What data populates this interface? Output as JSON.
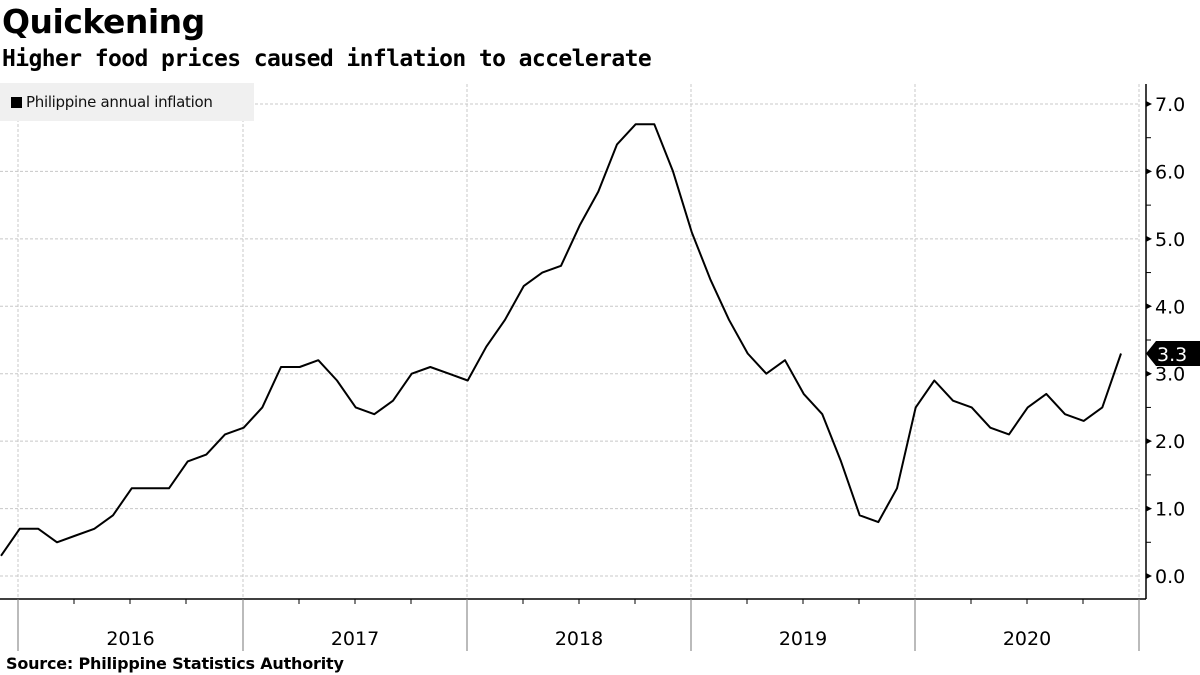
{
  "header": {
    "title": "Quickening",
    "subtitle": "Higher food prices caused inflation to accelerate"
  },
  "legend": {
    "items": [
      {
        "label": "Philippine annual inflation",
        "color": "#000000"
      }
    ]
  },
  "footer": {
    "source": "Source:  Philippine Statistics Authority"
  },
  "last_value_tag": "3.3",
  "chart_data": {
    "type": "line",
    "title": "Quickening",
    "subtitle": "Higher food prices caused inflation to accelerate",
    "xlabel": "",
    "ylabel": "",
    "y_axis_position": "right",
    "ylim": [
      -0.35,
      7.3
    ],
    "yticks": [
      0.0,
      1.0,
      2.0,
      3.0,
      4.0,
      5.0,
      6.0,
      7.0
    ],
    "ytick_labels": [
      "0.0",
      "1.0",
      "2.0",
      "3.0",
      "4.0",
      "5.0",
      "6.0",
      "7.0"
    ],
    "xtick_labels": [
      "2016",
      "2017",
      "2018",
      "2019",
      "2020"
    ],
    "grid": true,
    "legend_position": "top-left",
    "series": [
      {
        "name": "Philippine annual inflation",
        "color": "#000000",
        "x": [
          "2015-11",
          "2015-12",
          "2016-01",
          "2016-02",
          "2016-03",
          "2016-04",
          "2016-05",
          "2016-06",
          "2016-07",
          "2016-08",
          "2016-09",
          "2016-10",
          "2016-11",
          "2016-12",
          "2017-01",
          "2017-02",
          "2017-03",
          "2017-04",
          "2017-05",
          "2017-06",
          "2017-07",
          "2017-08",
          "2017-09",
          "2017-10",
          "2017-11",
          "2017-12",
          "2018-01",
          "2018-02",
          "2018-03",
          "2018-04",
          "2018-05",
          "2018-06",
          "2018-07",
          "2018-08",
          "2018-09",
          "2018-10",
          "2018-11",
          "2018-12",
          "2019-01",
          "2019-02",
          "2019-03",
          "2019-04",
          "2019-05",
          "2019-06",
          "2019-07",
          "2019-08",
          "2019-09",
          "2019-10",
          "2019-11",
          "2019-12",
          "2020-01",
          "2020-02",
          "2020-03",
          "2020-04",
          "2020-05",
          "2020-06",
          "2020-07",
          "2020-08",
          "2020-09",
          "2020-10",
          "2020-11"
        ],
        "values": [
          0.3,
          0.7,
          0.7,
          0.5,
          0.6,
          0.7,
          0.9,
          1.3,
          1.3,
          1.3,
          1.7,
          1.8,
          2.1,
          2.2,
          2.5,
          3.1,
          3.1,
          3.2,
          2.9,
          2.5,
          2.4,
          2.6,
          3.0,
          3.1,
          3.0,
          2.9,
          3.4,
          3.8,
          4.3,
          4.5,
          4.6,
          5.2,
          5.7,
          6.4,
          6.7,
          6.7,
          6.0,
          5.1,
          4.4,
          3.8,
          3.3,
          3.0,
          3.2,
          2.7,
          2.4,
          1.7,
          0.9,
          0.8,
          1.3,
          2.5,
          2.9,
          2.6,
          2.5,
          2.2,
          2.1,
          2.5,
          2.7,
          2.4,
          2.3,
          2.5,
          3.3
        ]
      }
    ]
  }
}
